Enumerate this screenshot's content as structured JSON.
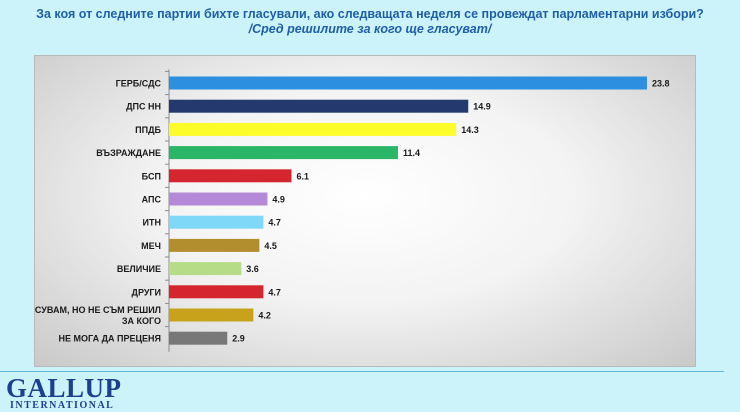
{
  "header": {
    "title": "За коя от следните партии бихте  гласували,  ако следващата неделя се провеждат парламентарни избори?",
    "subtitle": "/Сред решилите за кого ще гласуват/"
  },
  "logo": {
    "main": "GALLUP",
    "sub": "INTERNATIONAL"
  },
  "chart_data": {
    "type": "bar",
    "orientation": "horizontal",
    "categories": [
      [
        "ГЕРБ/СДС"
      ],
      [
        "ДПС НН"
      ],
      [
        "ППДБ"
      ],
      [
        "ВЪЗРАЖДАНЕ"
      ],
      [
        "БСП"
      ],
      [
        "АПС"
      ],
      [
        "ИТН"
      ],
      [
        "МЕЧ"
      ],
      [
        "ВЕЛИЧИЕ"
      ],
      [
        "ДРУГИ"
      ],
      [
        "ЩЕ ГЛАСУВАМ, НО НЕ СЪМ РЕШИЛ",
        "ЗА КОГО"
      ],
      [
        "НЕ МОГА ДА ПРЕЦЕНЯ"
      ]
    ],
    "values": [
      23.8,
      14.9,
      14.3,
      11.4,
      6.1,
      4.9,
      4.7,
      4.5,
      3.6,
      4.7,
      4.2,
      2.9
    ],
    "value_labels": [
      "23.8",
      "14.9",
      "14.3",
      "11.4",
      "6.1",
      "4.9",
      "4.7",
      "4.5",
      "3.6",
      "4.7",
      "4.2",
      "2.9"
    ],
    "colors": [
      "#2c8fe0",
      "#243a6e",
      "#fcfc2a",
      "#2bb567",
      "#d5262f",
      "#b48ad8",
      "#7fd8f7",
      "#b38e2e",
      "#b7dc88",
      "#d5262f",
      "#c8a21a",
      "#787878"
    ],
    "xlim": [
      0,
      23.8
    ],
    "title": "",
    "xlabel": "",
    "ylabel": "",
    "grid": false,
    "legend": false
  }
}
